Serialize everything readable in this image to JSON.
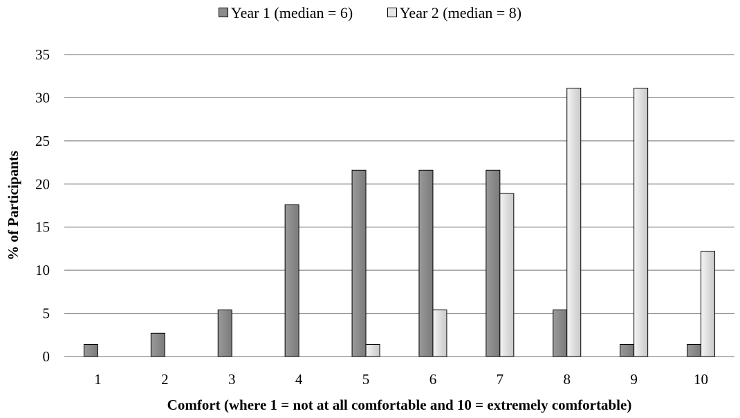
{
  "chart_data": {
    "type": "bar",
    "title": "",
    "xlabel": "Comfort (where 1 = not at all comfortable and 10 = extremely comfortable)",
    "ylabel": "% of Participants",
    "categories": [
      "1",
      "2",
      "3",
      "4",
      "5",
      "6",
      "7",
      "8",
      "9",
      "10"
    ],
    "ylim": [
      0,
      35
    ],
    "yticks": [
      0,
      5,
      10,
      15,
      20,
      25,
      30,
      35
    ],
    "grid": true,
    "legend_position": "top",
    "series": [
      {
        "name": "Year 1 (median = 6)",
        "color": "#8c8c8c",
        "values": [
          1.4,
          2.7,
          5.4,
          17.6,
          21.6,
          21.6,
          21.6,
          5.4,
          1.4,
          1.4
        ]
      },
      {
        "name": "Year 2 (median = 8)",
        "color": "#dedede",
        "values": [
          0,
          0,
          0,
          0,
          1.4,
          5.4,
          18.9,
          31.1,
          31.1,
          12.2
        ]
      }
    ]
  }
}
